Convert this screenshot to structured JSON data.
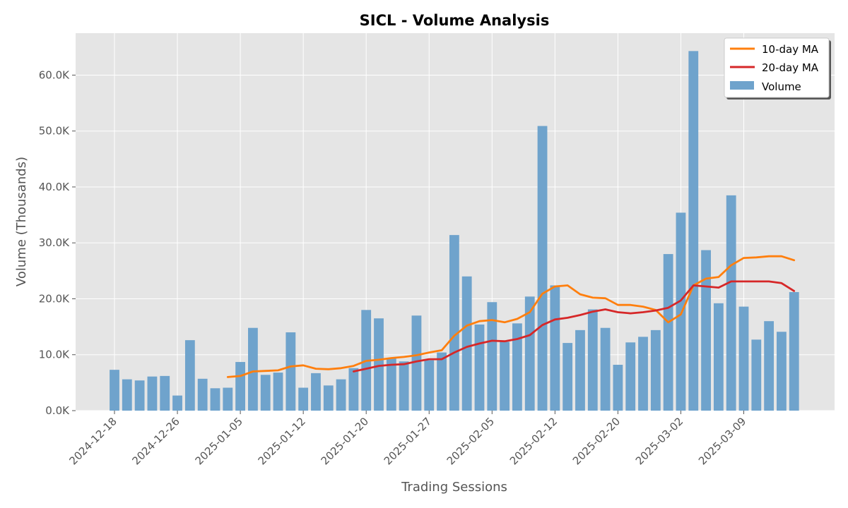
{
  "chart_data": {
    "type": "bar",
    "title": "SICL - Volume Analysis",
    "xlabel": "Trading Sessions",
    "ylabel": "Volume (Thousands)",
    "ylim": [
      0,
      67500
    ],
    "y_ticks": [
      0,
      10000,
      20000,
      30000,
      40000,
      50000,
      60000
    ],
    "y_tick_labels": [
      "0.0K",
      "10.0K",
      "20.0K",
      "30.0K",
      "40.0K",
      "50.0K",
      "60.0K"
    ],
    "x_tick_labels": [
      "2024-12-18",
      "2024-12-26",
      "2025-01-05",
      "2025-01-12",
      "2025-01-20",
      "2025-01-27",
      "2025-02-05",
      "2025-02-12",
      "2025-02-20",
      "2025-03-02",
      "2025-03-09"
    ],
    "x_tick_positions": [
      0,
      5,
      10,
      15,
      20,
      25,
      30,
      35,
      40,
      45,
      50
    ],
    "grid": true,
    "legend_position": "top-right",
    "colors": {
      "volume": "#6fa3cc",
      "ma10": "#ff7f0e",
      "ma20": "#d62728",
      "plot_bg": "#e5e5e5",
      "grid": "#ffffff"
    },
    "volume": [
      7300,
      5600,
      5400,
      6100,
      6200,
      2700,
      12600,
      5700,
      4000,
      4100,
      8700,
      14800,
      6400,
      6800,
      14000,
      4100,
      6700,
      4500,
      5600,
      7600,
      18000,
      16500,
      9400,
      8800,
      17000,
      9000,
      10400,
      31400,
      24000,
      15400,
      19400,
      12300,
      15600,
      20400,
      50900,
      22400,
      12100,
      14400,
      18100,
      14800,
      8200,
      12200,
      13200,
      14400,
      28000,
      35400,
      64300,
      28700,
      19200,
      38500,
      18600,
      12700,
      16000,
      14100,
      21200
    ],
    "ma10": [
      null,
      null,
      null,
      null,
      null,
      null,
      null,
      null,
      null,
      6000,
      6200,
      7000,
      7100,
      7200,
      7900,
      8100,
      7500,
      7400,
      7600,
      8000,
      8900,
      9100,
      9400,
      9600,
      9900,
      10400,
      10800,
      13400,
      15200,
      16000,
      16200,
      15800,
      16400,
      17600,
      20900,
      22200,
      22400,
      20800,
      20200,
      20100,
      18900,
      18900,
      18600,
      18000,
      15800,
      17200,
      22400,
      23600,
      23900,
      26000,
      27300,
      27400,
      27600,
      27600,
      26900
    ],
    "ma20": [
      null,
      null,
      null,
      null,
      null,
      null,
      null,
      null,
      null,
      null,
      null,
      null,
      null,
      null,
      null,
      null,
      null,
      null,
      null,
      7000,
      7500,
      8000,
      8200,
      8300,
      8800,
      9200,
      9200,
      10400,
      11400,
      12000,
      12500,
      12400,
      12800,
      13500,
      15300,
      16300,
      16600,
      17100,
      17700,
      18100,
      17600,
      17400,
      17600,
      17900,
      18400,
      19700,
      22400,
      22200,
      22000,
      23100,
      23100,
      23100,
      23100,
      22800,
      21400
    ],
    "series": [
      {
        "name": "10-day MA",
        "key": "ma10"
      },
      {
        "name": "20-day MA",
        "key": "ma20"
      },
      {
        "name": "Volume",
        "key": "volume"
      }
    ]
  }
}
